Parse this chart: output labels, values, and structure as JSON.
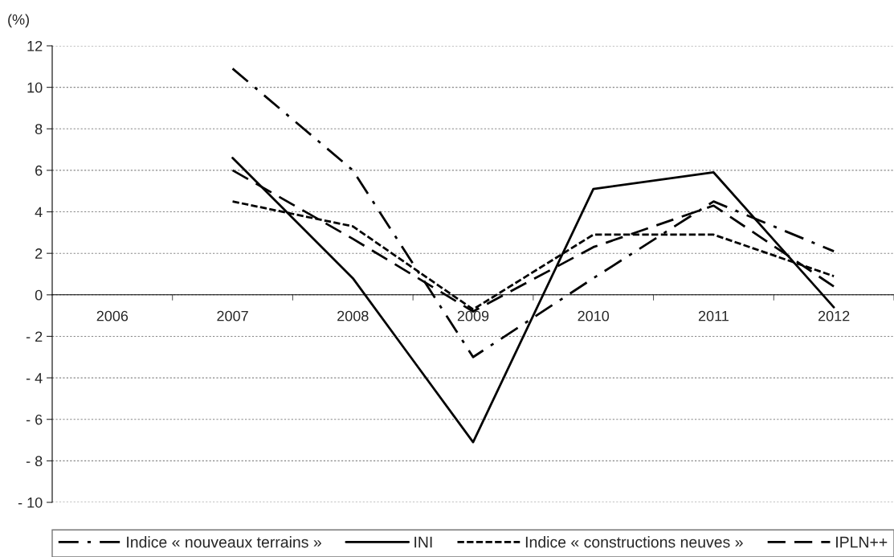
{
  "chart_data": {
    "type": "line",
    "ylabel": "(%)",
    "categories": [
      "2006",
      "2007",
      "2008",
      "2009",
      "2010",
      "2011",
      "2012"
    ],
    "series": [
      {
        "name": "Indice « nouveaux terrains »",
        "color": "#000000",
        "line_style": "dashdot",
        "values": [
          null,
          10.9,
          6.0,
          -3.0,
          0.8,
          4.5,
          2.1
        ]
      },
      {
        "name": "INI",
        "color": "#000000",
        "line_style": "solid",
        "values": [
          null,
          6.6,
          0.8,
          -7.1,
          5.1,
          5.9,
          -0.6
        ]
      },
      {
        "name": "Indice « constructions neuves »",
        "color": "#000000",
        "line_style": "dotted",
        "values": [
          null,
          4.5,
          3.3,
          -0.7,
          2.9,
          2.9,
          0.9
        ]
      },
      {
        "name": "IPLN++",
        "color": "#000000",
        "line_style": "dashed",
        "values": [
          null,
          6.0,
          2.7,
          -0.8,
          2.3,
          4.3,
          0.4
        ]
      }
    ],
    "ylim": [
      -10,
      12
    ],
    "yticks": [
      {
        "value": -10,
        "label": "- 10"
      },
      {
        "value": -8,
        "label": "- 8"
      },
      {
        "value": -6,
        "label": "- 6"
      },
      {
        "value": -4,
        "label": "- 4"
      },
      {
        "value": -2,
        "label": "- 2"
      },
      0,
      2,
      4,
      6,
      8,
      10,
      12
    ],
    "grid": "y",
    "legend": "bottom",
    "marker": "none"
  }
}
